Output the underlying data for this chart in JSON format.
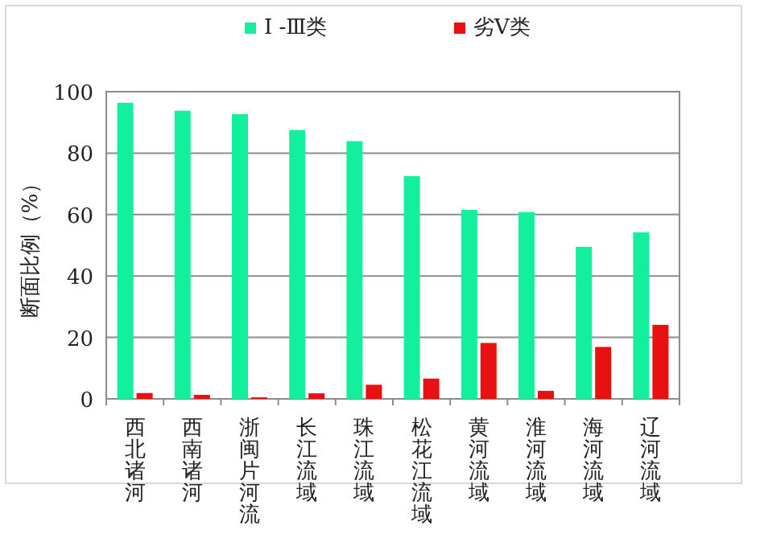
{
  "chart_data": {
    "type": "bar",
    "ylabel": "断面比例（%）",
    "categories": [
      "西北诸河",
      "西南诸河",
      "浙闽片河流",
      "长江流域",
      "珠江流域",
      "松花江流域",
      "黄河流域",
      "淮河流域",
      "海河流域",
      "辽河流域"
    ],
    "series": [
      {
        "name": "Ⅰ -Ⅲ类",
        "color": "#12f09e",
        "values": [
          96.4,
          93.8,
          92.7,
          87.5,
          83.9,
          72.5,
          61.5,
          60.8,
          49.5,
          54.2
        ]
      },
      {
        "name": "劣Ⅴ类",
        "color": "#e81010",
        "values": [
          1.9,
          1.3,
          0.5,
          1.8,
          4.6,
          6.6,
          18.2,
          2.6,
          16.9,
          24.1
        ]
      }
    ],
    "ylim": [
      0,
      100
    ],
    "yticks": [
      0,
      20,
      40,
      60,
      80,
      100
    ],
    "grid": "y",
    "legend": "top"
  }
}
